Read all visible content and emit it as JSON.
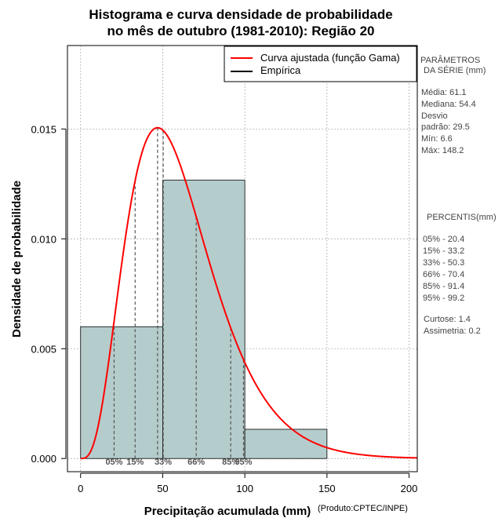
{
  "chart_data": {
    "type": "bar",
    "title_line1": "Histograma e curva densidade de probabilidade",
    "title_line2": "no mês de outubro (1981-2010): Região 20",
    "xlabel": "Precipitação acumulada (mm)",
    "ylabel": "Densidade de probabilidade",
    "source": "(Produto:CPTEC/INPE)",
    "xlim": [
      -8,
      205
    ],
    "ylim": [
      -0.0006,
      0.0188
    ],
    "x_ticks": [
      0,
      50,
      100,
      150,
      200
    ],
    "x_tick_labels": [
      "0",
      "50",
      "100",
      "150",
      "200"
    ],
    "y_ticks": [
      0.0,
      0.005,
      0.01,
      0.015
    ],
    "y_tick_labels": [
      "0.000",
      "0.005",
      "0.010",
      "0.015"
    ],
    "grid": true,
    "bars": [
      {
        "x0": 0,
        "x1": 50,
        "density": 0.006
      },
      {
        "x0": 50,
        "x1": 100,
        "density": 0.01267
      },
      {
        "x0": 100,
        "x1": 150,
        "density": 0.00133
      }
    ],
    "bar_color": "#b5cccc",
    "gamma_fit": {
      "mean": 61.1,
      "sd": 29.5,
      "color": "#ff0000"
    },
    "percentile_lines": [
      {
        "x": 20.4,
        "label": "05%"
      },
      {
        "x": 33.2,
        "label": "15%"
      },
      {
        "x": 50.3,
        "label": "33%"
      },
      {
        "x": 70.4,
        "label": "66%"
      },
      {
        "x": 91.4,
        "label": "85%"
      },
      {
        "x": 99.2,
        "label": "95%"
      }
    ],
    "legend": {
      "position": "top-right",
      "entries": [
        {
          "label": "Curva ajustada (função Gama)",
          "color": "#ff0000"
        },
        {
          "label": "Empírica",
          "color": "#000000"
        }
      ]
    }
  },
  "side_panel": {
    "params_title_1": "PARÂMETROS",
    "params_title_2": "DA SÉRIE (mm)",
    "media": "Média:  61.1",
    "mediana": "Mediana:  54.4",
    "desvio_1": "Desvio",
    "desvio_2": "padrão:  29.5",
    "min": "Mín:  6.6",
    "max": "Máx:  148.2",
    "percentis_title": "PERCENTIS(mm)",
    "p05": "05% -  20.4",
    "p15": "15% -  33.2",
    "p33": "33% -  50.3",
    "p66": "66% -  70.4",
    "p85": "85% -  91.4",
    "p95": "95% -  99.2",
    "curtose": "Curtose:  1.4",
    "assimetria": "Assimetria:  0.2"
  }
}
